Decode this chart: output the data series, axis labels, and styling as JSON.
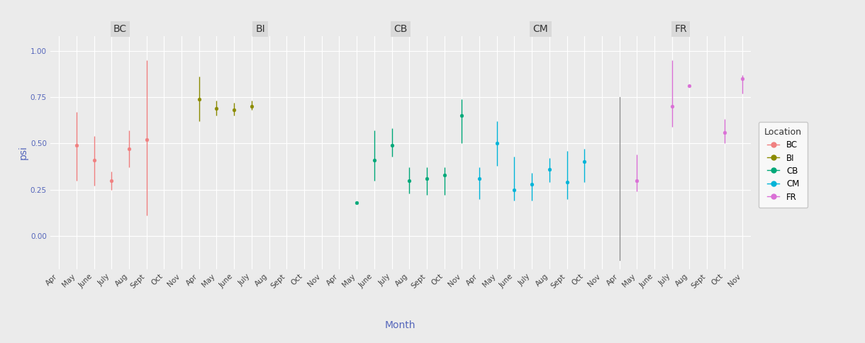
{
  "sites": [
    "BC",
    "BI",
    "CB",
    "CM",
    "FR"
  ],
  "months_all": [
    "Apr",
    "May",
    "June",
    "July",
    "Aug",
    "Sept",
    "Oct",
    "Nov"
  ],
  "colors": {
    "BC": "#F08080",
    "BI": "#8B8B00",
    "CB": "#00A878",
    "CM": "#00B4D8",
    "FR": "#DA70D6"
  },
  "data": {
    "BC": {
      "months": [
        "May",
        "June",
        "July",
        "Aug",
        "Sept",
        "Oct"
      ],
      "mean": [
        0.49,
        0.41,
        0.3,
        0.47,
        0.52,
        null
      ],
      "ci_lo": [
        0.3,
        0.27,
        0.25,
        0.37,
        0.11,
        null
      ],
      "ci_hi": [
        0.67,
        0.54,
        0.35,
        0.57,
        0.95,
        null
      ]
    },
    "BI": {
      "months": [
        "Apr",
        "May",
        "June",
        "July"
      ],
      "mean": [
        0.74,
        0.69,
        0.68,
        0.7
      ],
      "ci_lo": [
        0.62,
        0.65,
        0.65,
        0.68
      ],
      "ci_hi": [
        0.86,
        0.73,
        0.72,
        0.73
      ]
    },
    "CB": {
      "months": [
        "May",
        "June",
        "July",
        "Aug",
        "Sept",
        "Oct",
        "Nov"
      ],
      "mean": [
        0.18,
        0.41,
        0.49,
        0.3,
        0.31,
        0.33,
        0.65
      ],
      "ci_lo": [
        null,
        0.3,
        0.43,
        0.23,
        0.22,
        0.22,
        0.5
      ],
      "ci_hi": [
        null,
        0.57,
        0.58,
        0.37,
        0.37,
        0.37,
        0.74
      ]
    },
    "CM": {
      "months": [
        "Apr",
        "May",
        "June",
        "July",
        "Aug",
        "Sept",
        "Oct"
      ],
      "mean": [
        0.31,
        0.5,
        0.25,
        0.28,
        0.36,
        0.29,
        0.4
      ],
      "ci_lo": [
        0.2,
        0.38,
        0.19,
        0.19,
        0.29,
        0.2,
        0.29
      ],
      "ci_hi": [
        0.37,
        0.62,
        0.43,
        0.34,
        0.42,
        0.46,
        0.47
      ]
    },
    "FR": {
      "months": [
        "Apr",
        "May",
        "June",
        "July",
        "Aug",
        "Sept",
        "Oct",
        "Nov"
      ],
      "mean": [
        null,
        0.3,
        null,
        0.7,
        0.81,
        null,
        0.56,
        0.85
      ],
      "ci_lo": [
        null,
        0.24,
        null,
        0.59,
        0.81,
        null,
        0.5,
        0.77
      ],
      "ci_hi": [
        null,
        0.44,
        null,
        0.95,
        0.82,
        null,
        0.63,
        0.87
      ],
      "apr_line_lo": -0.13,
      "apr_line_hi": 0.75
    }
  },
  "ylim": [
    -0.18,
    1.08
  ],
  "yticks": [
    0.0,
    0.25,
    0.5,
    0.75,
    1.0
  ],
  "ytick_labels": [
    "0.00",
    "0.25",
    "0.50",
    "0.75",
    "1.00"
  ],
  "bg_color": "#EBEBEB",
  "grid_color": "#FFFFFF",
  "facet_label_bg": "#D9D9D9",
  "title_fontsize": 10,
  "tick_fontsize": 7.5,
  "label_fontsize": 10
}
